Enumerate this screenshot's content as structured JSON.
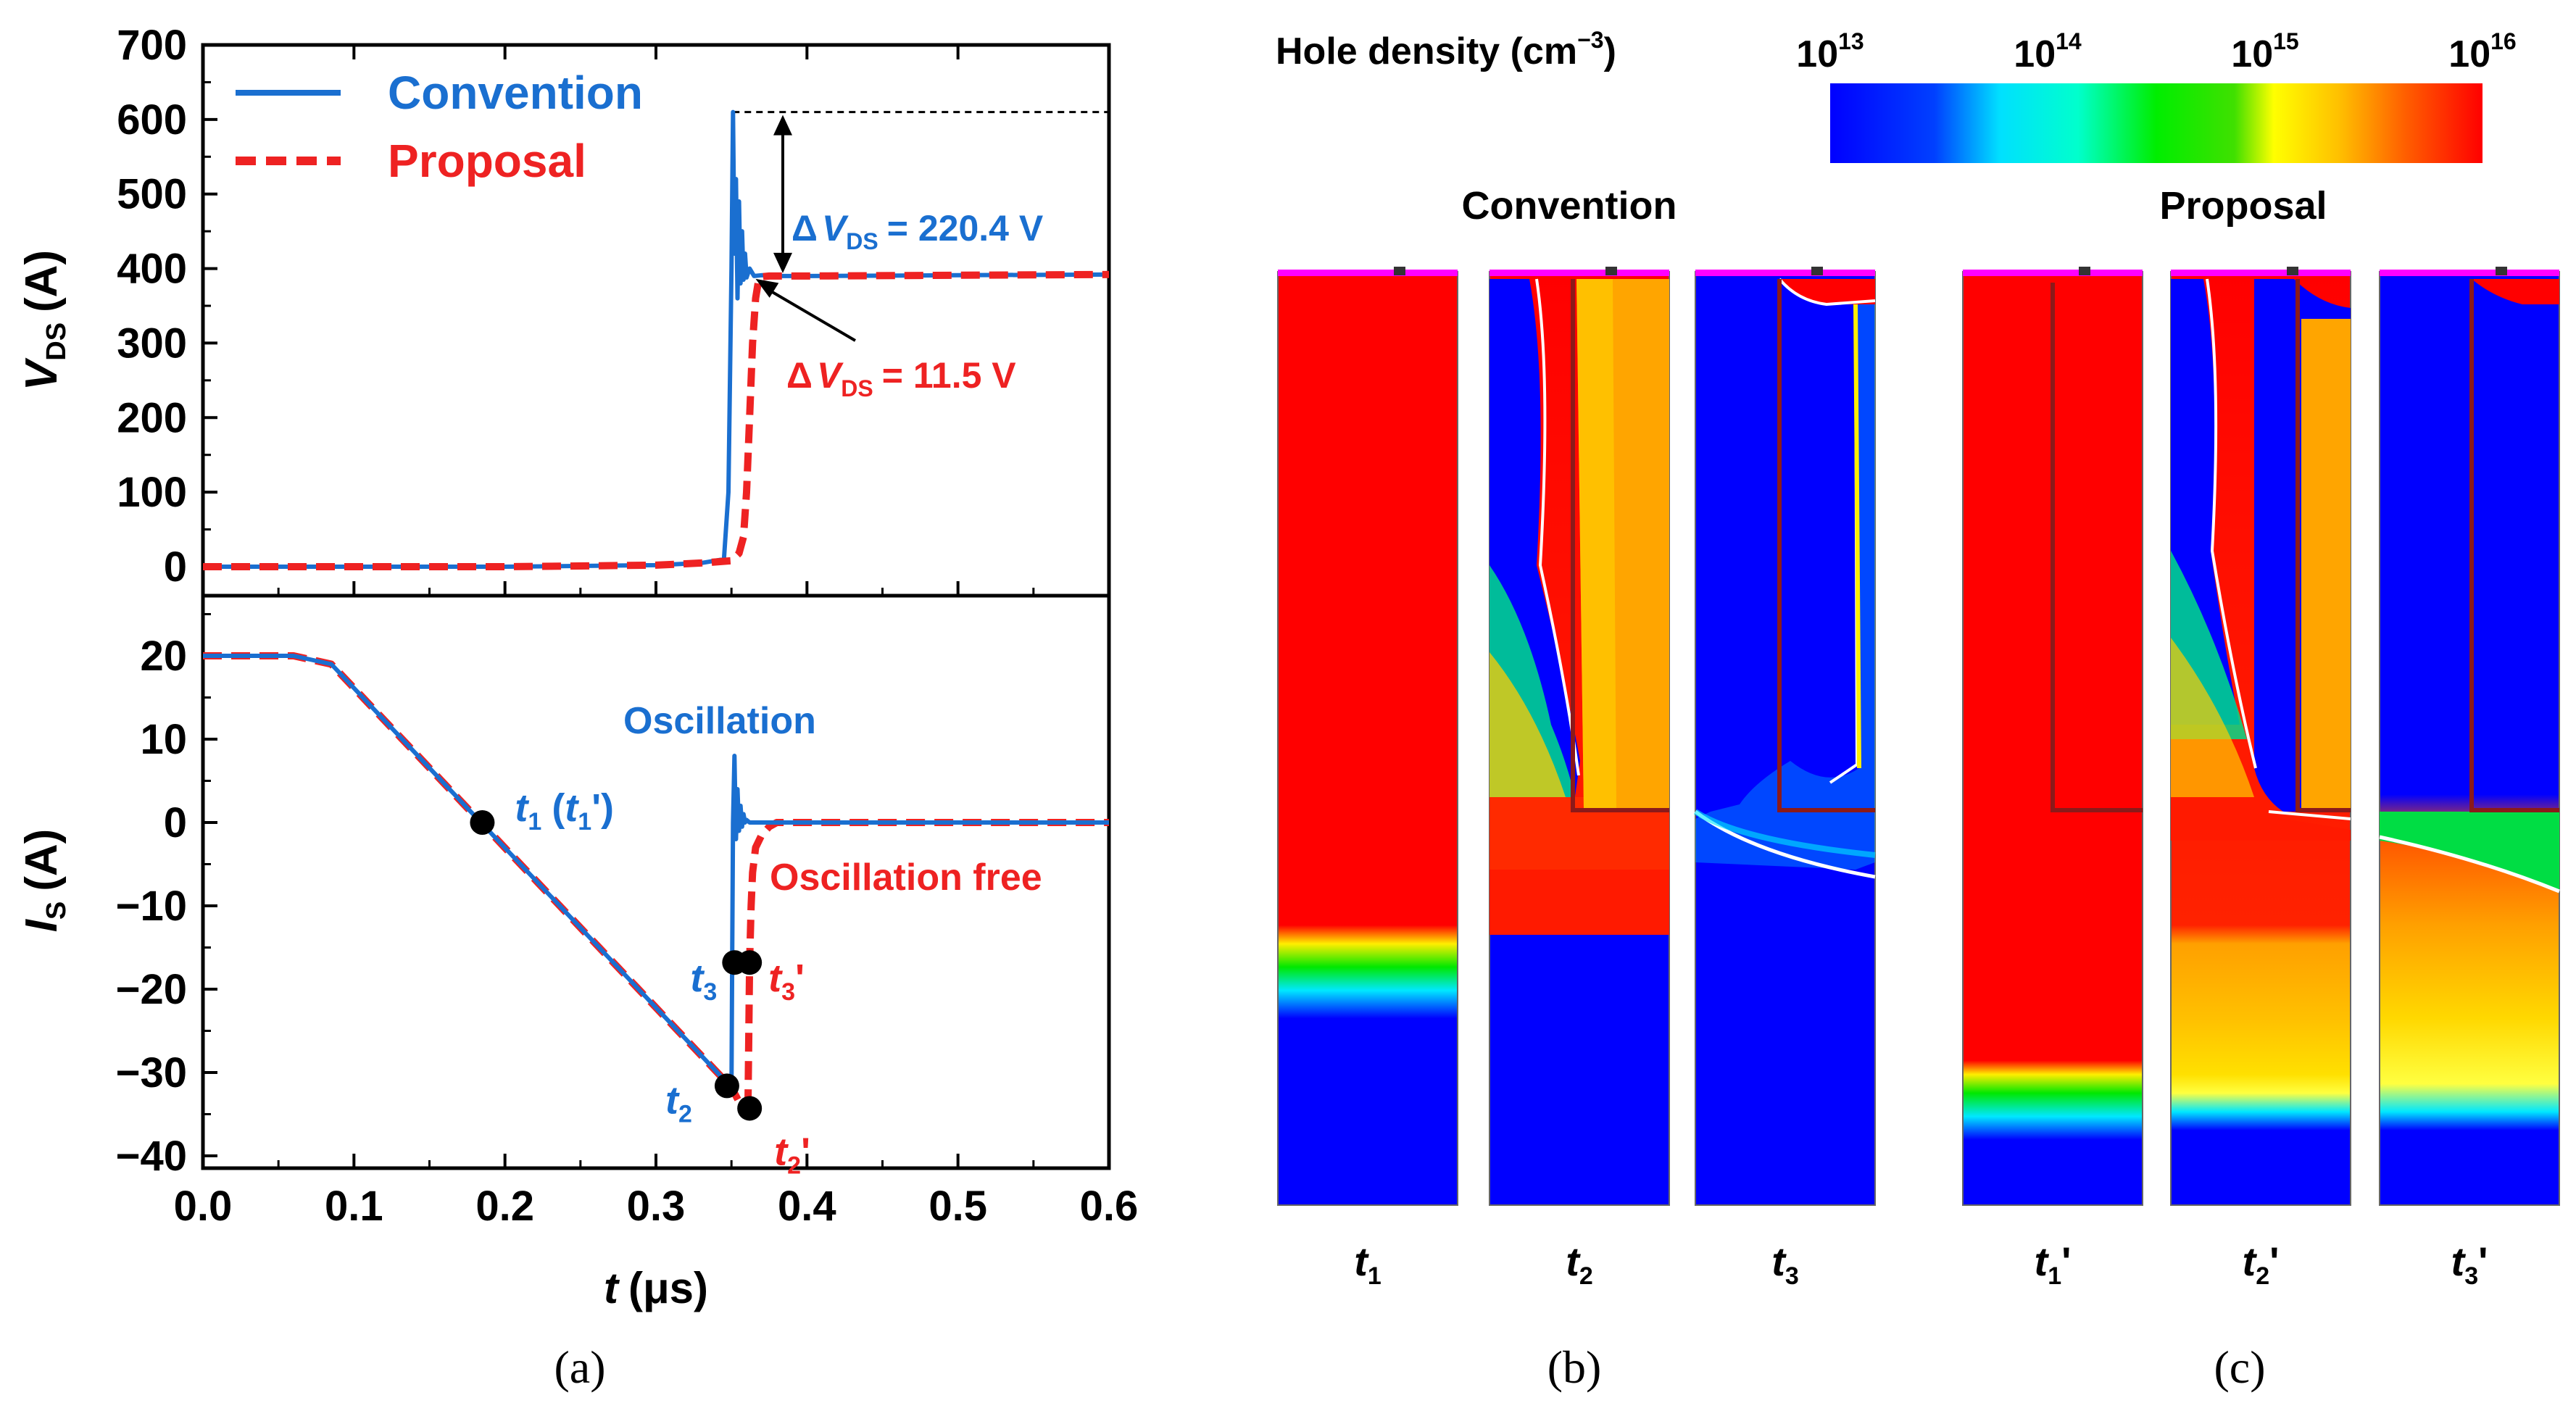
{
  "colors": {
    "convention": "#1a6fd0",
    "proposal": "#ee2222",
    "axis": "#000000",
    "map_red": "#ff0000",
    "map_blue": "#0000ff",
    "map_orange": "#ffa500",
    "map_yellow": "#ffe800",
    "map_green": "#22dd22",
    "map_cyan": "#00e8ff",
    "gate_line": "#8b1a1a",
    "contact": "#ff00ff"
  },
  "panel_labels": {
    "a": "(a)",
    "b": "(b)",
    "c": "(c)"
  },
  "chart_data": [
    {
      "type": "line",
      "panel": "a-top",
      "ylabel_main": "V",
      "ylabel_sub": "DS",
      "ylabel_unit": "(A)",
      "xlim": [
        0,
        0.6
      ],
      "ylim": [
        0,
        700
      ],
      "yticks": [
        "0",
        "100",
        "200",
        "300",
        "400",
        "500",
        "600",
        "700"
      ],
      "ytick_values": [
        0,
        100,
        200,
        300,
        400,
        500,
        600,
        700
      ],
      "legend": {
        "placement": "top-left"
      },
      "series": [
        {
          "name": "Convention",
          "x": [
            0,
            0.1,
            0.2,
            0.3,
            0.33,
            0.345,
            0.348,
            0.35,
            0.351,
            0.352,
            0.353,
            0.354,
            0.355,
            0.356,
            0.357,
            0.358,
            0.359,
            0.36,
            0.362,
            0.365,
            0.37,
            0.38,
            0.4,
            0.5,
            0.6
          ],
          "y": [
            0,
            0,
            0,
            2,
            5,
            10,
            100,
            400,
            610,
            420,
            520,
            360,
            490,
            380,
            450,
            385,
            420,
            388,
            400,
            390,
            391,
            390,
            390,
            391,
            392
          ]
        },
        {
          "name": "Proposal",
          "x": [
            0,
            0.1,
            0.2,
            0.3,
            0.33,
            0.35,
            0.355,
            0.358,
            0.36,
            0.362,
            0.364,
            0.366,
            0.368,
            0.37,
            0.375,
            0.38,
            0.4,
            0.5,
            0.6
          ],
          "y": [
            0,
            0,
            0,
            2,
            5,
            8,
            18,
            40,
            100,
            200,
            300,
            360,
            385,
            389,
            390,
            390,
            390,
            391,
            392
          ]
        }
      ],
      "annotations": {
        "dashed_ref_y": 610,
        "delta_conv": {
          "prefix": "Δ",
          "var": "V",
          "sub": "DS",
          "rest": "= 220.4 V"
        },
        "delta_prop": {
          "prefix": "Δ",
          "var": "V",
          "sub": "DS",
          "rest": "= 11.5 V"
        }
      }
    },
    {
      "type": "line",
      "panel": "a-bottom",
      "ylabel_main": "I",
      "ylabel_sub": "S",
      "ylabel_unit": "(A)",
      "xlabel_var": "t",
      "xlabel_unit": "(μs)",
      "xlim": [
        0,
        0.6
      ],
      "ylim": [
        -40,
        25
      ],
      "xticks": [
        "0.0",
        "0.1",
        "0.2",
        "0.3",
        "0.4",
        "0.5",
        "0.6"
      ],
      "xtick_values": [
        0,
        0.1,
        0.2,
        0.3,
        0.4,
        0.5,
        0.6
      ],
      "yticks": [
        "20",
        "10",
        "0",
        "−10",
        "−20",
        "−30",
        "−40"
      ],
      "ytick_values": [
        20,
        10,
        0,
        -10,
        -20,
        -30,
        -40
      ],
      "series": [
        {
          "name": "Convention",
          "x": [
            0,
            0.06,
            0.085,
            0.35,
            0.3505,
            0.351,
            0.352,
            0.353,
            0.354,
            0.355,
            0.356,
            0.357,
            0.358,
            0.359,
            0.36,
            0.362,
            0.365,
            0.37,
            0.38,
            0.4,
            0.5,
            0.6
          ],
          "y": [
            20,
            20,
            19,
            -31.8,
            -16,
            0,
            8,
            -2,
            4,
            -1,
            2,
            -0.5,
            1,
            0,
            0.3,
            0,
            0,
            0,
            0,
            0,
            0,
            0
          ]
        },
        {
          "name": "Proposal",
          "x": [
            0,
            0.06,
            0.085,
            0.35,
            0.355,
            0.3605,
            0.361,
            0.362,
            0.363,
            0.364,
            0.366,
            0.37,
            0.375,
            0.38,
            0.4,
            0.5,
            0.6
          ],
          "y": [
            20,
            20,
            19,
            -31.8,
            -33.5,
            -34,
            -33,
            -16.8,
            -10,
            -6,
            -3,
            -1.5,
            -0.5,
            0,
            0,
            0,
            0
          ]
        }
      ],
      "markers": [
        {
          "x": 0.185,
          "y": 0,
          "label": "t",
          "sub": "1",
          "extra": "(t",
          "extra_sub": "1",
          "extra_end": "')"
        },
        {
          "x": 0.347,
          "y": -31.6,
          "label": "t",
          "sub": "2",
          "extra": "",
          "extra_sub": "",
          "extra_end": ""
        },
        {
          "x": 0.362,
          "y": -34.3,
          "label": "t",
          "sub": "2",
          "extra": "",
          "extra_sub": "",
          "extra_end": "'"
        },
        {
          "x": 0.352,
          "y": -16.8,
          "label": "t",
          "sub": "3",
          "extra": "",
          "extra_sub": "",
          "extra_end": ""
        },
        {
          "x": 0.362,
          "y": -16.8,
          "label": "t",
          "sub": "3",
          "extra": "",
          "extra_sub": "",
          "extra_end": "'"
        }
      ],
      "annotations": {
        "oscillation": "Oscillation",
        "oscillation_free": "Oscillation free"
      }
    },
    {
      "type": "heatmap",
      "panel": "b-c",
      "colorbar": {
        "title_text": "Hole density (cm",
        "title_sup": "−3",
        "title_end": ")",
        "ticks": [
          {
            "base": "10",
            "exp": "13"
          },
          {
            "base": "10",
            "exp": "14"
          },
          {
            "base": "10",
            "exp": "15"
          },
          {
            "base": "10",
            "exp": "16"
          }
        ]
      },
      "group_titles": {
        "b": "Convention",
        "c": "Proposal"
      },
      "maps": [
        {
          "id": "t1",
          "label": "t",
          "sub": "1",
          "prime": ""
        },
        {
          "id": "t2",
          "label": "t",
          "sub": "2",
          "prime": ""
        },
        {
          "id": "t3",
          "label": "t",
          "sub": "3",
          "prime": ""
        },
        {
          "id": "t1p",
          "label": "t",
          "sub": "1",
          "prime": "'"
        },
        {
          "id": "t2p",
          "label": "t",
          "sub": "2",
          "prime": "'"
        },
        {
          "id": "t3p",
          "label": "t",
          "sub": "3",
          "prime": "'"
        }
      ]
    }
  ]
}
